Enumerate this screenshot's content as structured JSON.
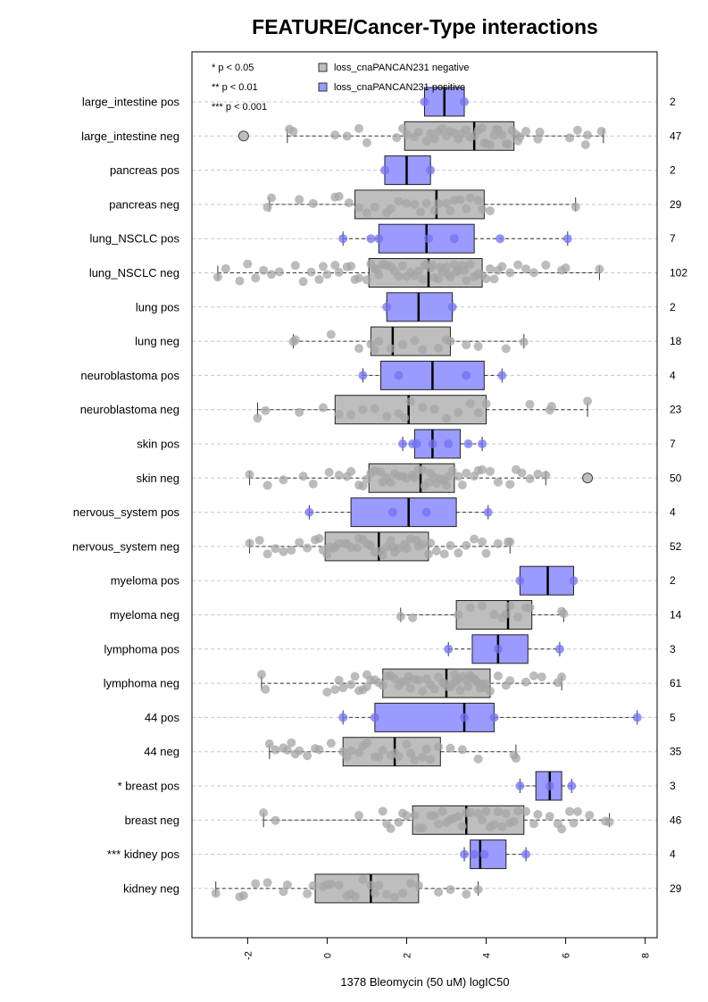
{
  "chart_data": {
    "type": "boxplot",
    "title": "FEATURE/Cancer-Type interactions",
    "xlabel": "1378 Bleomycin (50 uM) logIC50",
    "xlim": [
      -3.4,
      8.3
    ],
    "x_ticks": [
      -2,
      0,
      2,
      4,
      6,
      8
    ],
    "x_tick_labels": [
      "-2",
      "0",
      "2",
      "4",
      "6",
      "8"
    ],
    "grid": "horizontal dashed",
    "legend_placement": "top-left",
    "significance_legend": [
      "* p < 0.05",
      "** p < 0.01",
      "*** p < 0.001"
    ],
    "legend": [
      {
        "name": "loss_cnaPANCAN231 negative",
        "color": "#bebebe"
      },
      {
        "name": "loss_cnaPANCAN231 positive",
        "color": "#9a9aff"
      }
    ],
    "colors": {
      "negative_box": "#bebebe",
      "positive_box": "#9a9aff",
      "negative_point": "#a6a6a6",
      "positive_point": "#7272f0",
      "grid": "#c8c8c8"
    },
    "rows": [
      {
        "label": "large_intestine pos",
        "n": "2",
        "group": "pos",
        "whisker": [
          2.45,
          3.45
        ],
        "box": [
          2.45,
          3.45
        ],
        "median": 2.95,
        "outliers": [],
        "points": [
          2.45,
          3.45
        ]
      },
      {
        "label": "large_intestine neg",
        "n": "47",
        "group": "neg",
        "whisker": [
          -1.0,
          6.95
        ],
        "box": [
          1.95,
          4.7
        ],
        "median": 3.7,
        "outliers": [
          -2.1
        ],
        "points": [
          -0.95,
          -0.85,
          0.2,
          0.5,
          0.8,
          1.0,
          1.75,
          2.0,
          2.3,
          2.5,
          2.7,
          2.9,
          3.0,
          3.1,
          3.3,
          3.5,
          3.6,
          3.7,
          3.8,
          3.9,
          4.0,
          4.1,
          4.25,
          4.4,
          4.55,
          4.65,
          4.75,
          4.85,
          5.3,
          5.35,
          6.3,
          6.5,
          6.55,
          6.9,
          2.2,
          3.2,
          4.3,
          4.8,
          2.6,
          3.4,
          1.9,
          4.5,
          2.8,
          3.95,
          4.2,
          5.0,
          6.1
        ]
      },
      {
        "label": "pancreas pos",
        "n": "2",
        "group": "pos",
        "whisker": [
          1.45,
          2.6
        ],
        "box": [
          1.45,
          2.6
        ],
        "median": 2.0,
        "outliers": [],
        "points": [
          1.45,
          2.6
        ]
      },
      {
        "label": "pancreas neg",
        "n": "29",
        "group": "neg",
        "whisker": [
          -1.45,
          6.25
        ],
        "box": [
          0.7,
          3.95
        ],
        "median": 2.75,
        "outliers": [],
        "points": [
          -1.5,
          -1.4,
          -0.7,
          -0.35,
          0.2,
          0.3,
          0.55,
          0.8,
          1.2,
          1.5,
          1.8,
          2.0,
          2.2,
          2.5,
          2.7,
          2.8,
          3.0,
          3.2,
          3.35,
          3.5,
          3.6,
          3.8,
          3.9,
          4.1,
          1.0,
          2.35,
          3.1,
          1.6,
          6.25
        ]
      },
      {
        "label": "lung_NSCLC pos",
        "n": "7",
        "group": "pos",
        "whisker": [
          0.4,
          6.05
        ],
        "box": [
          1.3,
          3.7
        ],
        "median": 2.5,
        "outliers": [],
        "points": [
          0.4,
          1.1,
          2.55,
          3.2,
          4.35,
          6.05,
          1.3
        ]
      },
      {
        "label": "lung_NSCLC neg",
        "n": "102",
        "group": "neg",
        "whisker": [
          -2.75,
          6.85
        ],
        "box": [
          1.05,
          3.9
        ],
        "median": 2.55,
        "outliers": [],
        "points": [
          -2.75,
          -2.55,
          -2.2,
          -2.0,
          -1.6,
          -1.4,
          -1.2,
          -0.8,
          -0.6,
          -0.4,
          -0.2,
          0.0,
          0.3,
          0.6,
          0.8,
          1.0,
          1.2,
          1.4,
          1.6,
          1.8,
          2.0,
          2.2,
          2.4,
          2.6,
          2.8,
          3.0,
          3.2,
          3.4,
          3.6,
          3.8,
          4.0,
          4.2,
          4.4,
          4.6,
          4.8,
          5.0,
          5.2,
          5.5,
          5.9,
          6.0,
          6.85,
          -1.8,
          -0.1,
          0.5,
          1.1,
          1.3,
          1.5,
          1.7,
          1.9,
          2.1,
          2.3,
          2.5,
          2.7,
          2.9,
          3.1,
          3.3,
          3.5,
          3.7,
          3.9,
          4.1,
          4.3,
          0.2,
          0.7,
          2.45,
          2.65,
          2.85,
          1.25,
          1.45,
          3.05,
          3.25,
          3.45
        ]
      },
      {
        "label": "lung pos",
        "n": "2",
        "group": "pos",
        "whisker": [
          1.5,
          3.15
        ],
        "box": [
          1.5,
          3.15
        ],
        "median": 2.3,
        "outliers": [],
        "points": [
          1.5,
          3.15
        ]
      },
      {
        "label": "lung neg",
        "n": "18",
        "group": "neg",
        "whisker": [
          -0.85,
          4.95
        ],
        "box": [
          1.1,
          3.1
        ],
        "median": 1.65,
        "outliers": [],
        "points": [
          -0.85,
          -0.8,
          0.1,
          0.8,
          1.1,
          1.3,
          1.6,
          1.9,
          2.2,
          2.4,
          2.8,
          3.0,
          3.1,
          3.5,
          3.8,
          4.5,
          4.95,
          1.2
        ]
      },
      {
        "label": "neuroblastoma pos",
        "n": "4",
        "group": "pos",
        "whisker": [
          0.9,
          4.4
        ],
        "box": [
          1.35,
          3.95
        ],
        "median": 2.65,
        "outliers": [],
        "points": [
          0.9,
          1.8,
          3.5,
          4.4
        ]
      },
      {
        "label": "neuroblastoma neg",
        "n": "23",
        "group": "neg",
        "whisker": [
          -1.75,
          6.55
        ],
        "box": [
          0.2,
          4.0
        ],
        "median": 2.05,
        "outliers": [],
        "points": [
          -1.75,
          -1.55,
          -0.7,
          -0.1,
          0.3,
          0.6,
          0.9,
          1.2,
          1.5,
          1.8,
          2.1,
          2.4,
          2.7,
          3.0,
          3.3,
          3.6,
          3.8,
          4.0,
          5.1,
          5.6,
          5.65,
          6.55,
          1.95
        ]
      },
      {
        "label": "skin pos",
        "n": "7",
        "group": "pos",
        "whisker": [
          1.9,
          3.9
        ],
        "box": [
          2.2,
          3.35
        ],
        "median": 2.65,
        "outliers": [],
        "points": [
          1.9,
          2.15,
          2.25,
          2.65,
          3.05,
          3.55,
          3.9
        ]
      },
      {
        "label": "skin neg",
        "n": "50",
        "group": "neg",
        "whisker": [
          -1.95,
          5.5
        ],
        "box": [
          1.05,
          3.2
        ],
        "median": 2.35,
        "outliers": [
          6.55
        ],
        "points": [
          -1.95,
          -1.5,
          -1.1,
          -0.6,
          -0.35,
          0.05,
          0.3,
          0.5,
          0.8,
          1.0,
          1.2,
          1.35,
          1.5,
          1.7,
          1.9,
          2.0,
          2.15,
          2.3,
          2.4,
          2.55,
          2.7,
          2.85,
          3.0,
          3.15,
          3.3,
          3.5,
          3.7,
          3.9,
          4.1,
          4.3,
          4.6,
          4.75,
          5.1,
          5.3,
          5.5,
          1.1,
          1.6,
          2.2,
          2.6,
          2.95,
          3.4,
          0.9,
          1.8,
          2.45,
          2.75,
          3.05,
          3.8,
          4.9,
          0.6,
          1.4
        ]
      },
      {
        "label": "nervous_system pos",
        "n": "4",
        "group": "pos",
        "whisker": [
          -0.45,
          4.05
        ],
        "box": [
          0.6,
          3.25
        ],
        "median": 2.05,
        "outliers": [],
        "points": [
          -0.45,
          1.65,
          2.5,
          4.05
        ]
      },
      {
        "label": "nervous_system neg",
        "n": "52",
        "group": "neg",
        "whisker": [
          -1.95,
          4.6
        ],
        "box": [
          -0.05,
          2.55
        ],
        "median": 1.3,
        "outliers": [],
        "points": [
          -1.95,
          -1.7,
          -1.5,
          -1.3,
          -1.1,
          -0.9,
          -0.7,
          -0.5,
          -0.3,
          -0.1,
          0.0,
          0.15,
          0.3,
          0.45,
          0.6,
          0.75,
          0.9,
          1.05,
          1.2,
          1.35,
          1.5,
          1.65,
          1.8,
          1.95,
          2.1,
          2.25,
          2.4,
          2.55,
          2.75,
          2.95,
          3.1,
          3.3,
          3.5,
          3.7,
          4.0,
          4.3,
          4.55,
          4.6,
          -0.2,
          0.5,
          1.0,
          1.4,
          1.7,
          2.0,
          0.2,
          0.8,
          1.1,
          1.6,
          2.3,
          2.6,
          3.9,
          0.05
        ]
      },
      {
        "label": "myeloma pos",
        "n": "2",
        "group": "pos",
        "whisker": [
          4.85,
          6.2
        ],
        "box": [
          4.85,
          6.2
        ],
        "median": 5.55,
        "outliers": [],
        "points": [
          4.85,
          6.2
        ]
      },
      {
        "label": "myeloma neg",
        "n": "14",
        "group": "neg",
        "whisker": [
          1.85,
          5.95
        ],
        "box": [
          3.25,
          5.15
        ],
        "median": 4.55,
        "outliers": [],
        "points": [
          1.85,
          2.15,
          3.3,
          3.6,
          3.9,
          4.2,
          4.5,
          4.6,
          4.8,
          5.0,
          5.1,
          5.9,
          5.95,
          4.4
        ]
      },
      {
        "label": "lymphoma pos",
        "n": "3",
        "group": "pos",
        "whisker": [
          3.05,
          5.85
        ],
        "box": [
          3.65,
          5.05
        ],
        "median": 4.3,
        "outliers": [],
        "points": [
          3.05,
          4.3,
          5.85
        ]
      },
      {
        "label": "lymphoma neg",
        "n": "61",
        "group": "neg",
        "whisker": [
          -1.65,
          5.9
        ],
        "box": [
          1.4,
          4.1
        ],
        "median": 3.0,
        "outliers": [],
        "points": [
          -1.65,
          -1.55,
          0.0,
          0.2,
          0.4,
          0.6,
          0.8,
          1.0,
          1.2,
          1.4,
          1.6,
          1.8,
          2.0,
          2.2,
          2.4,
          2.6,
          2.8,
          3.0,
          3.1,
          3.2,
          3.3,
          3.4,
          3.5,
          3.6,
          3.7,
          3.8,
          3.9,
          4.0,
          4.1,
          4.3,
          4.6,
          5.2,
          5.4,
          5.9,
          0.3,
          0.7,
          1.1,
          1.5,
          1.9,
          2.3,
          2.7,
          2.9,
          3.15,
          3.35,
          3.55,
          3.75,
          3.95,
          1.3,
          1.7,
          2.1,
          2.5,
          4.5,
          5.0,
          5.8,
          0.9,
          2.05,
          2.95,
          3.25,
          3.65,
          3.85,
          1.0
        ]
      },
      {
        "label": "44 pos",
        "n": "5",
        "group": "pos",
        "whisker": [
          0.4,
          7.8
        ],
        "box": [
          1.2,
          4.2
        ],
        "median": 3.45,
        "outliers": [],
        "points": [
          0.4,
          1.2,
          3.45,
          4.2,
          7.8
        ]
      },
      {
        "label": "44 neg",
        "n": "35",
        "group": "neg",
        "whisker": [
          -1.45,
          4.75
        ],
        "box": [
          0.4,
          2.85
        ],
        "median": 1.7,
        "outliers": [],
        "points": [
          -1.45,
          -1.3,
          -1.1,
          -0.9,
          -0.7,
          -0.5,
          -0.3,
          0.1,
          0.4,
          0.6,
          0.8,
          1.0,
          1.2,
          1.4,
          1.6,
          1.8,
          2.0,
          2.2,
          2.4,
          2.6,
          2.8,
          3.1,
          3.4,
          3.8,
          4.7,
          4.75,
          -1.0,
          -0.2,
          0.5,
          0.9,
          1.3,
          1.7,
          2.1,
          2.5,
          -0.8
        ]
      },
      {
        "label": "* breast pos",
        "n": "3",
        "group": "pos",
        "whisker": [
          4.85,
          6.15
        ],
        "box": [
          5.25,
          5.9
        ],
        "median": 5.6,
        "outliers": [],
        "points": [
          4.85,
          5.6,
          6.15
        ]
      },
      {
        "label": "breast neg",
        "n": "46",
        "group": "neg",
        "whisker": [
          -1.6,
          7.1
        ],
        "box": [
          2.15,
          4.95
        ],
        "median": 3.5,
        "outliers": [],
        "points": [
          -1.6,
          -1.3,
          0.8,
          1.4,
          1.6,
          1.8,
          2.0,
          2.2,
          2.4,
          2.6,
          2.8,
          3.0,
          3.2,
          3.4,
          3.6,
          3.8,
          4.0,
          4.2,
          4.4,
          4.6,
          4.8,
          5.0,
          5.3,
          5.6,
          5.9,
          6.1,
          6.3,
          6.6,
          7.0,
          7.1,
          1.9,
          2.7,
          3.1,
          3.5,
          3.9,
          4.3,
          4.7,
          5.2,
          5.8,
          2.3,
          3.3,
          4.1,
          6.2,
          1.5,
          2.9,
          4.5
        ]
      },
      {
        "label": "*** kidney pos",
        "n": "4",
        "group": "pos",
        "whisker": [
          3.45,
          5.0
        ],
        "box": [
          3.6,
          4.5
        ],
        "median": 3.85,
        "outliers": [],
        "points": [
          3.45,
          3.7,
          3.95,
          5.0
        ]
      },
      {
        "label": "kidney neg",
        "n": "29",
        "group": "neg",
        "whisker": [
          -2.8,
          3.8
        ],
        "box": [
          -0.3,
          2.3
        ],
        "median": 1.1,
        "outliers": [],
        "points": [
          -2.8,
          -2.2,
          -2.1,
          -1.8,
          -1.5,
          -1.1,
          -1.0,
          -0.5,
          -0.35,
          -0.1,
          0.1,
          0.3,
          0.5,
          0.7,
          0.9,
          1.1,
          1.3,
          1.5,
          1.7,
          1.9,
          2.1,
          2.3,
          2.8,
          3.1,
          3.5,
          3.8,
          0.0,
          0.6,
          1.2
        ]
      }
    ]
  }
}
